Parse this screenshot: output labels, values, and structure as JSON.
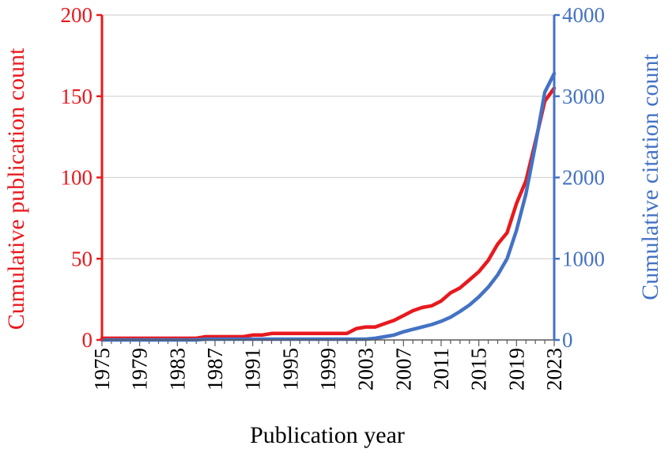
{
  "chart_data": {
    "type": "line",
    "xlabel": "Publication year",
    "ylabel_left": "Cumulative publication count",
    "ylabel_right": "Cumulative citation count",
    "x_range": [
      1975,
      2023
    ],
    "x_ticks": [
      1975,
      1979,
      1983,
      1987,
      1991,
      1995,
      1999,
      2003,
      2007,
      2011,
      2015,
      2019,
      2023
    ],
    "y_left": {
      "range": [
        0,
        200
      ],
      "ticks": [
        0,
        50,
        100,
        150,
        200
      ],
      "color": "#e8191e"
    },
    "y_right": {
      "range": [
        0,
        4000
      ],
      "ticks": [
        0,
        1000,
        2000,
        3000,
        4000
      ],
      "color": "#4472c4"
    },
    "grid": true,
    "series": [
      {
        "axis": "left",
        "color": "#e8191e",
        "x": [
          1975,
          1976,
          1977,
          1978,
          1979,
          1980,
          1981,
          1982,
          1983,
          1984,
          1985,
          1986,
          1987,
          1988,
          1989,
          1990,
          1991,
          1992,
          1993,
          1994,
          1995,
          1996,
          1997,
          1998,
          1999,
          2000,
          2001,
          2002,
          2003,
          2004,
          2005,
          2006,
          2007,
          2008,
          2009,
          2010,
          2011,
          2012,
          2013,
          2014,
          2015,
          2016,
          2017,
          2018,
          2019,
          2020,
          2021,
          2022,
          2023
        ],
        "values": [
          1,
          1,
          1,
          1,
          1,
          1,
          1,
          1,
          1,
          1,
          1,
          2,
          2,
          2,
          2,
          2,
          3,
          3,
          4,
          4,
          4,
          4,
          4,
          4,
          4,
          4,
          4,
          7,
          8,
          8,
          10,
          12,
          15,
          18,
          20,
          21,
          24,
          29,
          32,
          37,
          42,
          49,
          59,
          66,
          84,
          98,
          122,
          147,
          155
        ]
      },
      {
        "axis": "right",
        "color": "#4472c4",
        "x": [
          1975,
          1976,
          1977,
          1978,
          1979,
          1980,
          1981,
          1982,
          1983,
          1984,
          1985,
          1986,
          1987,
          1988,
          1989,
          1990,
          1991,
          1992,
          1993,
          1994,
          1995,
          1996,
          1997,
          1998,
          1999,
          2000,
          2001,
          2002,
          2003,
          2004,
          2005,
          2006,
          2007,
          2008,
          2009,
          2010,
          2011,
          2012,
          2013,
          2014,
          2015,
          2016,
          2017,
          2018,
          2019,
          2020,
          2021,
          2022,
          2023
        ],
        "values": [
          0,
          0,
          0,
          0,
          0,
          0,
          0,
          0,
          0,
          0,
          0,
          10,
          10,
          10,
          10,
          10,
          10,
          10,
          10,
          10,
          10,
          10,
          10,
          10,
          10,
          10,
          10,
          10,
          10,
          20,
          40,
          60,
          100,
          130,
          160,
          190,
          230,
          280,
          350,
          430,
          530,
          650,
          800,
          1000,
          1350,
          1800,
          2400,
          3050,
          3280
        ]
      }
    ]
  }
}
